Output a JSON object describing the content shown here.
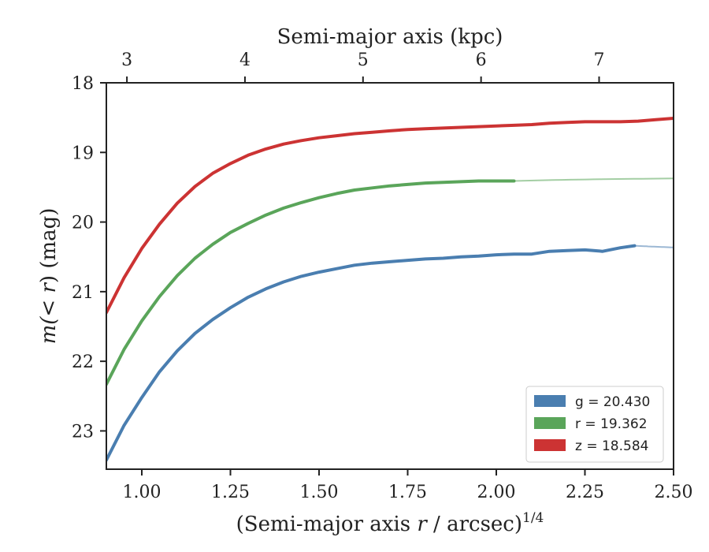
{
  "chart_data": {
    "type": "line",
    "top_axis": {
      "label": "Semi-major axis (kpc)",
      "ticks": [
        3,
        4,
        5,
        6,
        7
      ],
      "tick_labels": [
        "3",
        "4",
        "5",
        "6",
        "7"
      ]
    },
    "bottom_axis": {
      "label_prefix": "(Semi-major axis ",
      "label_var": "r",
      "label_mid": " / arcsec)",
      "label_sup": "1/4",
      "ticks": [
        1.0,
        1.25,
        1.5,
        1.75,
        2.0,
        2.25,
        2.5
      ],
      "tick_labels": [
        "1.00",
        "1.25",
        "1.50",
        "1.75",
        "2.00",
        "2.25",
        "2.50"
      ]
    },
    "y_axis": {
      "label_prefix": "m(",
      "label_var": "< r",
      "label_suffix": ") (mag)",
      "ticks": [
        18,
        19,
        20,
        21,
        22,
        23
      ],
      "tick_labels": [
        "18",
        "19",
        "20",
        "21",
        "22",
        "23"
      ],
      "inverted": true
    },
    "xlim": [
      0.9,
      2.5
    ],
    "ylim": [
      18.0,
      23.55
    ],
    "series": [
      {
        "name": "g",
        "label_text": "g = 20.430",
        "color": "#4a7eb0",
        "asymptote": 20.43,
        "x": [
          0.9,
          0.95,
          1.0,
          1.05,
          1.1,
          1.15,
          1.2,
          1.25,
          1.3,
          1.35,
          1.4,
          1.45,
          1.5,
          1.55,
          1.6,
          1.65,
          1.7,
          1.75,
          1.8,
          1.85,
          1.9,
          1.95,
          2.0,
          2.05,
          2.1,
          2.15,
          2.2,
          2.25,
          2.3,
          2.35,
          2.39
        ],
        "y": [
          23.42,
          22.92,
          22.52,
          22.15,
          21.85,
          21.6,
          21.4,
          21.23,
          21.08,
          20.96,
          20.86,
          20.78,
          20.72,
          20.67,
          20.62,
          20.59,
          20.57,
          20.55,
          20.53,
          20.52,
          20.5,
          20.49,
          20.47,
          20.46,
          20.46,
          20.42,
          20.41,
          20.4,
          20.42,
          20.37,
          20.34
        ]
      },
      {
        "name": "r",
        "label_text": "r = 19.362",
        "color": "#5aa55a",
        "asymptote": 19.362,
        "x": [
          0.9,
          0.95,
          1.0,
          1.05,
          1.1,
          1.15,
          1.2,
          1.25,
          1.3,
          1.35,
          1.4,
          1.45,
          1.5,
          1.55,
          1.6,
          1.65,
          1.7,
          1.75,
          1.8,
          1.85,
          1.9,
          1.95,
          2.0,
          2.05
        ],
        "y": [
          22.33,
          21.83,
          21.42,
          21.07,
          20.77,
          20.52,
          20.32,
          20.15,
          20.02,
          19.9,
          19.8,
          19.72,
          19.65,
          19.59,
          19.54,
          19.51,
          19.48,
          19.46,
          19.44,
          19.43,
          19.42,
          19.41,
          19.41,
          19.41
        ]
      },
      {
        "name": "z",
        "label_text": "z = 18.584",
        "color": "#cc3333",
        "asymptote": 18.584,
        "x": [
          0.9,
          0.95,
          1.0,
          1.05,
          1.1,
          1.15,
          1.2,
          1.25,
          1.3,
          1.35,
          1.4,
          1.45,
          1.5,
          1.55,
          1.6,
          1.65,
          1.7,
          1.75,
          1.8,
          1.85,
          1.9,
          1.95,
          2.0,
          2.05,
          2.1,
          2.15,
          2.2,
          2.25,
          2.3,
          2.35,
          2.4,
          2.45,
          2.5
        ],
        "y": [
          21.3,
          20.8,
          20.38,
          20.03,
          19.73,
          19.49,
          19.3,
          19.16,
          19.04,
          18.95,
          18.88,
          18.83,
          18.79,
          18.76,
          18.73,
          18.71,
          18.69,
          18.67,
          18.66,
          18.65,
          18.64,
          18.63,
          18.62,
          18.61,
          18.6,
          18.58,
          18.57,
          18.56,
          18.56,
          18.56,
          18.55,
          18.53,
          18.51
        ]
      }
    ],
    "legend": {
      "placement": "lower-right"
    },
    "grid": false
  }
}
